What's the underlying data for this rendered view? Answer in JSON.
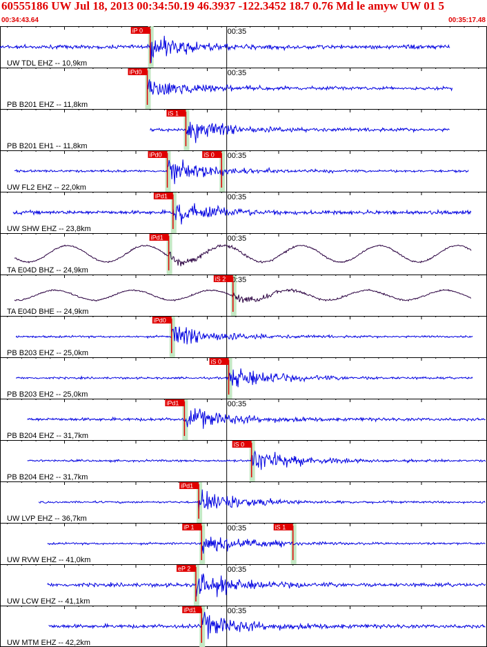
{
  "header": {
    "title": "60555186 UW Jul 18, 2013 00:34:50.19   46.3937 -122.3452 18.7 0.76 Md le amyw UW 01   5",
    "start_time": "00:34:43.64",
    "end_time": "00:35:17.48"
  },
  "colors": {
    "trace_short_period": "#0000e0",
    "trace_broadband": "#2a0040",
    "pick_label_bg": "#e00000",
    "pick_label_text": "#ffffff",
    "pick_window": "#c4e8c4",
    "header_text": "#e00000",
    "minute_line": "#000000"
  },
  "chart_data": {
    "type": "line",
    "title": "60555186 UW Jul 18, 2013 00:34:50.19",
    "time_window": [
      "00:34:43.64",
      "00:35:17.48"
    ],
    "duration_s": 33.84,
    "minute_mark_label": "00:35",
    "minute_mark_time_s": 16.36,
    "traces": [
      {
        "label": "UW TDL EHZ -- 10,9km",
        "picks": [
          {
            "label": "iP 0",
            "t": 11.0
          }
        ],
        "trace_start_s": 0.3,
        "trace_end_s": 32.0,
        "kind": "short-period",
        "amplitude": 0.55,
        "show_minute": true
      },
      {
        "label": "PB B201 EHZ -- 11,8km",
        "picks": [
          {
            "label": "iPd0",
            "t": 10.8
          }
        ],
        "trace_start_s": 10.8,
        "trace_end_s": 32.2,
        "kind": "short-period",
        "amplitude": 0.45,
        "show_minute": true
      },
      {
        "label": "PB B201 EH1 -- 11,8km",
        "picks": [
          {
            "label": "iS 1",
            "t": 13.5
          }
        ],
        "trace_start_s": 11.0,
        "trace_end_s": 32.0,
        "kind": "short-period",
        "amplitude": 0.5,
        "show_minute": false
      },
      {
        "label": "UW FL2 EHZ -- 22,0km",
        "picks": [
          {
            "label": "iPd0",
            "t": 12.2
          },
          {
            "label": "iS 0",
            "t": 16.0
          }
        ],
        "trace_start_s": 1.5,
        "trace_end_s": 33.3,
        "kind": "short-period",
        "amplitude": 0.35,
        "show_minute": true
      },
      {
        "label": "UW SHW EHZ -- 23,8km",
        "picks": [
          {
            "label": "iPd1",
            "t": 12.6
          }
        ],
        "trace_start_s": 1.4,
        "trace_end_s": 33.5,
        "kind": "short-period",
        "amplitude": 0.55,
        "show_minute": true
      },
      {
        "label": "TA E04D BHZ -- 24,9km",
        "picks": [
          {
            "label": "iPd1",
            "t": 12.3
          }
        ],
        "trace_start_s": 1.5,
        "trace_end_s": 33.5,
        "kind": "broadband",
        "amplitude": 0.5,
        "show_minute": true
      },
      {
        "label": "TA E04D BHE -- 24,9km",
        "picks": [
          {
            "label": "iS 2",
            "t": 16.8
          }
        ],
        "trace_start_s": 1.5,
        "trace_end_s": 33.5,
        "kind": "broadband",
        "amplitude": 0.3,
        "show_minute": true
      },
      {
        "label": "PB B203 EHZ -- 25,0km",
        "picks": [
          {
            "label": "iPd0",
            "t": 12.5
          }
        ],
        "trace_start_s": 1.6,
        "trace_end_s": 33.6,
        "kind": "short-period",
        "amplitude": 0.3,
        "show_minute": false
      },
      {
        "label": "PB B203 EH2 -- 25,0km",
        "picks": [
          {
            "label": "iS 0",
            "t": 16.5
          }
        ],
        "trace_start_s": 1.6,
        "trace_end_s": 33.6,
        "kind": "short-period",
        "amplitude": 0.3,
        "show_minute": false
      },
      {
        "label": "PB B204 EHZ -- 31,7km",
        "picks": [
          {
            "label": "iPd1",
            "t": 13.4
          }
        ],
        "trace_start_s": 2.4,
        "trace_end_s": 34.5,
        "kind": "short-period",
        "amplitude": 0.45,
        "show_minute": true
      },
      {
        "label": "PB B204 EH2 -- 31,7km",
        "picks": [
          {
            "label": "iS 0",
            "t": 18.1
          }
        ],
        "trace_start_s": 2.4,
        "trace_end_s": 34.5,
        "kind": "short-period",
        "amplitude": 0.3,
        "show_minute": false
      },
      {
        "label": "UW LVP EHZ -- 36,7km",
        "picks": [
          {
            "label": "iPd1",
            "t": 14.4
          }
        ],
        "trace_start_s": 3.2,
        "trace_end_s": 35.0,
        "kind": "short-period",
        "amplitude": 0.3,
        "show_minute": false
      },
      {
        "label": "UW RVW EHZ -- 41,0km",
        "picks": [
          {
            "label": "iP 1",
            "t": 14.6
          },
          {
            "label": "iS 1",
            "t": 21.0
          }
        ],
        "trace_start_s": 3.8,
        "trace_end_s": 35.0,
        "kind": "short-period",
        "amplitude": 0.3,
        "show_minute": true
      },
      {
        "label": "UW LCW EHZ -- 41,1km",
        "picks": [
          {
            "label": "eP 2",
            "t": 14.2
          }
        ],
        "trace_start_s": 3.8,
        "trace_end_s": 35.5,
        "kind": "short-period",
        "amplitude": 0.55,
        "show_minute": true
      },
      {
        "label": "UW MTM EHZ -- 42,2km",
        "picks": [
          {
            "label": "iPd1",
            "t": 14.6
          }
        ],
        "trace_start_s": 3.9,
        "trace_end_s": 35.5,
        "kind": "short-period",
        "amplitude": 0.55,
        "show_minute": true
      }
    ]
  }
}
